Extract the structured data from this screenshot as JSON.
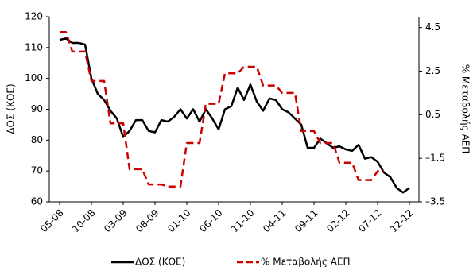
{
  "chart_data": {
    "type": "line",
    "y_label": "ΔΟΣ (ΚΟΕ)",
    "y2_label": "% Μεταβολής ΑΕΠ",
    "categories": [
      "05-08",
      null,
      null,
      null,
      null,
      "10-08",
      null,
      null,
      null,
      null,
      "03-09",
      null,
      null,
      null,
      null,
      "08-09",
      null,
      null,
      null,
      null,
      "01-10",
      null,
      null,
      null,
      null,
      "06-10",
      null,
      null,
      null,
      null,
      "11-10",
      null,
      null,
      null,
      null,
      "04-11",
      null,
      null,
      null,
      null,
      "09-11",
      null,
      null,
      null,
      null,
      "02-12",
      null,
      null,
      null,
      null,
      "07-12",
      null,
      null,
      null,
      null,
      "12-12"
    ],
    "series": [
      {
        "name": "ΔΟΣ (ΚΟΕ)",
        "color": "#000000",
        "dash": false,
        "values": [
          112.5,
          113,
          111.5,
          111.5,
          111,
          100,
          95,
          93,
          89.5,
          87,
          81,
          83,
          86.5,
          86.5,
          83,
          82.5,
          86.5,
          86,
          87.5,
          90,
          87,
          90,
          86,
          90,
          87,
          83.5,
          90,
          91,
          97,
          93,
          98,
          92.5,
          89.5,
          93.5,
          93,
          90,
          89,
          87,
          85,
          77.5,
          77.5,
          80.5,
          79,
          77.5,
          78,
          77,
          76.5,
          78.5,
          74,
          74.5,
          73,
          69.5,
          68,
          64.5,
          63,
          64.5
        ]
      },
      {
        "name": "% Μεταβολής ΑΕΠ",
        "color": "#cc0000",
        "dash": true,
        "axis": "y2",
        "values": [
          4.3,
          4.3,
          3.4,
          3.4,
          3.4,
          2.05,
          2.05,
          2.05,
          0.1,
          0.1,
          0.1,
          -2.0,
          -2.0,
          -2.0,
          -2.7,
          -2.7,
          -2.7,
          -2.8,
          -2.8,
          -2.8,
          -0.8,
          -0.8,
          -0.8,
          1.0,
          1.0,
          1.0,
          2.4,
          2.4,
          2.4,
          2.7,
          2.7,
          2.7,
          1.84,
          1.84,
          1.84,
          1.5,
          1.5,
          1.5,
          -0.25,
          -0.25,
          -0.25,
          -0.8,
          -0.8,
          -0.8,
          -1.7,
          -1.7,
          -1.7,
          -2.5,
          -2.5,
          -2.5,
          -2.1,
          -2.1,
          null,
          null,
          null,
          null
        ]
      }
    ],
    "ylim": [
      60,
      120
    ],
    "yticks": [
      60,
      70,
      80,
      90,
      100,
      110,
      120
    ],
    "y2lim": [
      -3.5,
      5.0
    ],
    "y2ticks": [
      4.5,
      2.5,
      0.5,
      {
        "value": -1.5,
        "label": "–1.5"
      },
      {
        "value": -3.5,
        "label": "–3.5"
      }
    ],
    "grid": false,
    "legend": "bottom"
  }
}
